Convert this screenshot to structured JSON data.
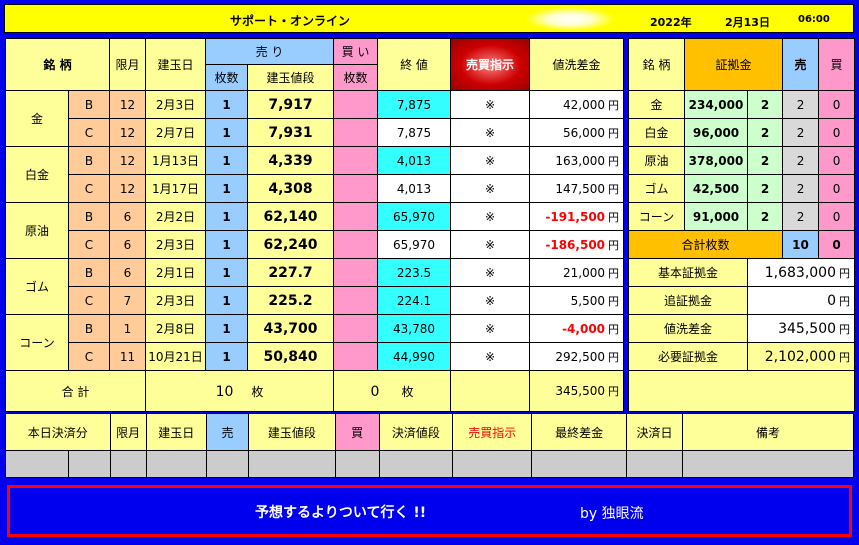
{
  "header": {
    "title": "サポート・オンライン",
    "year": "2022年",
    "date": "2月13日",
    "time": "06:00"
  },
  "main": {
    "headers": {
      "symbol": "銘 柄",
      "month": "限月",
      "date": "建玉日",
      "sell": "売 り",
      "buy": "買 い",
      "sell_count": "枚数",
      "price": "建玉値段",
      "buy_count": "枚数",
      "close": "終 値",
      "order_btn": "売買指示",
      "diff": "値洗差金"
    },
    "groups": [
      {
        "name": "金",
        "rows": [
          {
            "type": "B",
            "month": "12",
            "date": "2月3日",
            "count": "1",
            "price": "7,917",
            "close": "7,875",
            "close_cyan": true,
            "mark": "※",
            "diff": "42,000",
            "unit": "円",
            "neg": false
          },
          {
            "type": "C",
            "month": "12",
            "date": "2月7日",
            "count": "1",
            "price": "7,931",
            "close": "7,875",
            "close_cyan": false,
            "mark": "※",
            "diff": "56,000",
            "unit": "円",
            "neg": false
          }
        ]
      },
      {
        "name": "白金",
        "rows": [
          {
            "type": "B",
            "month": "12",
            "date": "1月13日",
            "count": "1",
            "price": "4,339",
            "close": "4,013",
            "close_cyan": true,
            "mark": "※",
            "diff": "163,000",
            "unit": "円",
            "neg": false
          },
          {
            "type": "C",
            "month": "12",
            "date": "1月17日",
            "count": "1",
            "price": "4,308",
            "close": "4,013",
            "close_cyan": false,
            "mark": "※",
            "diff": "147,500",
            "unit": "円",
            "neg": false
          }
        ]
      },
      {
        "name": "原油",
        "rows": [
          {
            "type": "B",
            "month": "6",
            "date": "2月2日",
            "count": "1",
            "price": "62,140",
            "close": "65,970",
            "close_cyan": true,
            "mark": "※",
            "diff": "-191,500",
            "unit": "円",
            "neg": true
          },
          {
            "type": "C",
            "month": "6",
            "date": "2月3日",
            "count": "1",
            "price": "62,240",
            "close": "65,970",
            "close_cyan": false,
            "mark": "※",
            "diff": "-186,500",
            "unit": "円",
            "neg": true
          }
        ]
      },
      {
        "name": "ゴム",
        "rows": [
          {
            "type": "B",
            "month": "6",
            "date": "2月1日",
            "count": "1",
            "price": "227.7",
            "close": "223.5",
            "close_cyan": true,
            "mark": "※",
            "diff": "21,000",
            "unit": "円",
            "neg": false
          },
          {
            "type": "C",
            "month": "7",
            "date": "2月3日",
            "count": "1",
            "price": "225.2",
            "close": "224.1",
            "close_cyan": true,
            "mark": "※",
            "diff": "5,500",
            "unit": "円",
            "neg": false
          }
        ]
      },
      {
        "name": "コーン",
        "rows": [
          {
            "type": "B",
            "month": "1",
            "date": "2月8日",
            "count": "1",
            "price": "43,700",
            "close": "43,780",
            "close_cyan": true,
            "mark": "※",
            "diff": "-4,000",
            "unit": "円",
            "neg": true
          },
          {
            "type": "C",
            "month": "11",
            "date": "10月21日",
            "count": "1",
            "price": "50,840",
            "close": "44,990",
            "close_cyan": true,
            "mark": "※",
            "diff": "292,500",
            "unit": "円",
            "neg": false
          }
        ]
      }
    ],
    "total": {
      "label": "合 計",
      "sell": "10",
      "sell_unit": "枚",
      "buy": "0",
      "buy_unit": "枚",
      "diff": "345,500",
      "unit": "円"
    }
  },
  "side": {
    "headers": {
      "symbol": "銘 柄",
      "margin": "証拠金",
      "sell": "売",
      "buy": "買"
    },
    "rows": [
      {
        "name": "金",
        "margin": "234,000",
        "n": "2",
        "sell": "2",
        "buy": "0"
      },
      {
        "name": "白金",
        "margin": "96,000",
        "n": "2",
        "sell": "2",
        "buy": "0"
      },
      {
        "name": "原油",
        "margin": "378,000",
        "n": "2",
        "sell": "2",
        "buy": "0"
      },
      {
        "name": "ゴム",
        "margin": "42,500",
        "n": "2",
        "sell": "2",
        "buy": "0"
      },
      {
        "name": "コーン",
        "margin": "91,000",
        "n": "2",
        "sell": "2",
        "buy": "0"
      }
    ],
    "total_count": {
      "label": "合計枚数",
      "sell": "10",
      "buy": "0"
    },
    "summary": [
      {
        "label": "基本証拠金",
        "value": "1,683,000",
        "unit": "円"
      },
      {
        "label": "追証拠金",
        "value": "0",
        "unit": "円"
      },
      {
        "label": "値洗差金",
        "value": "345,500",
        "unit": "円"
      },
      {
        "label": "必要証拠金",
        "value": "2,102,000",
        "unit": "円"
      }
    ]
  },
  "settle": {
    "headers": [
      "本日決済分",
      "限月",
      "建玉日",
      "売",
      "建玉値段",
      "買",
      "決済値段",
      "売買指示",
      "最終差金",
      "決済日",
      "備考"
    ]
  },
  "footer": {
    "slogan": "予想するよりついて行く !!",
    "author": "by 独眼流"
  },
  "colors": {
    "frame": "#0000ee",
    "yellow": "#ffff00",
    "light_yellow": "#ffff99",
    "light_blue": "#99ccff",
    "pink": "#ff99cc",
    "cyan": "#33ffff",
    "peach": "#ffcc99",
    "red": "#ff0000",
    "orange": "#ffc000",
    "green": "#ccffcc"
  }
}
